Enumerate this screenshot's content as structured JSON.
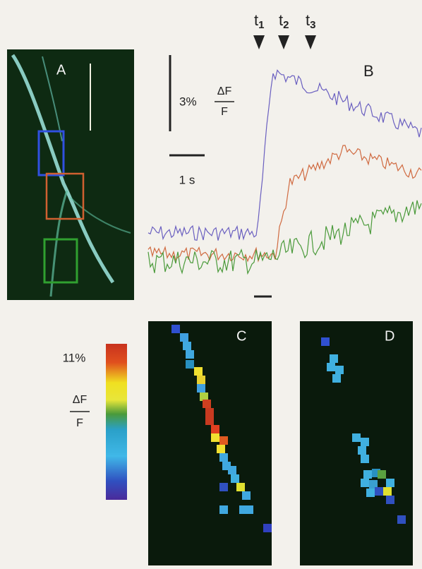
{
  "panel_a": {
    "label": "A"
  },
  "panel_b": {
    "label": "B",
    "markers": [
      {
        "letter": "t",
        "subscript": "1"
      },
      {
        "letter": "t",
        "subscript": "2"
      },
      {
        "letter": "t",
        "subscript": "3"
      }
    ],
    "amplitude_scale": "3%",
    "amplitude_numerator": "ΔF",
    "amplitude_denominator": "F",
    "time_scale": "1 s"
  },
  "panel_c": {
    "label": "C"
  },
  "panel_d": {
    "label": "D"
  },
  "colorbar": {
    "max_label": "11%",
    "numerator": "ΔF",
    "denominator": "F"
  }
}
